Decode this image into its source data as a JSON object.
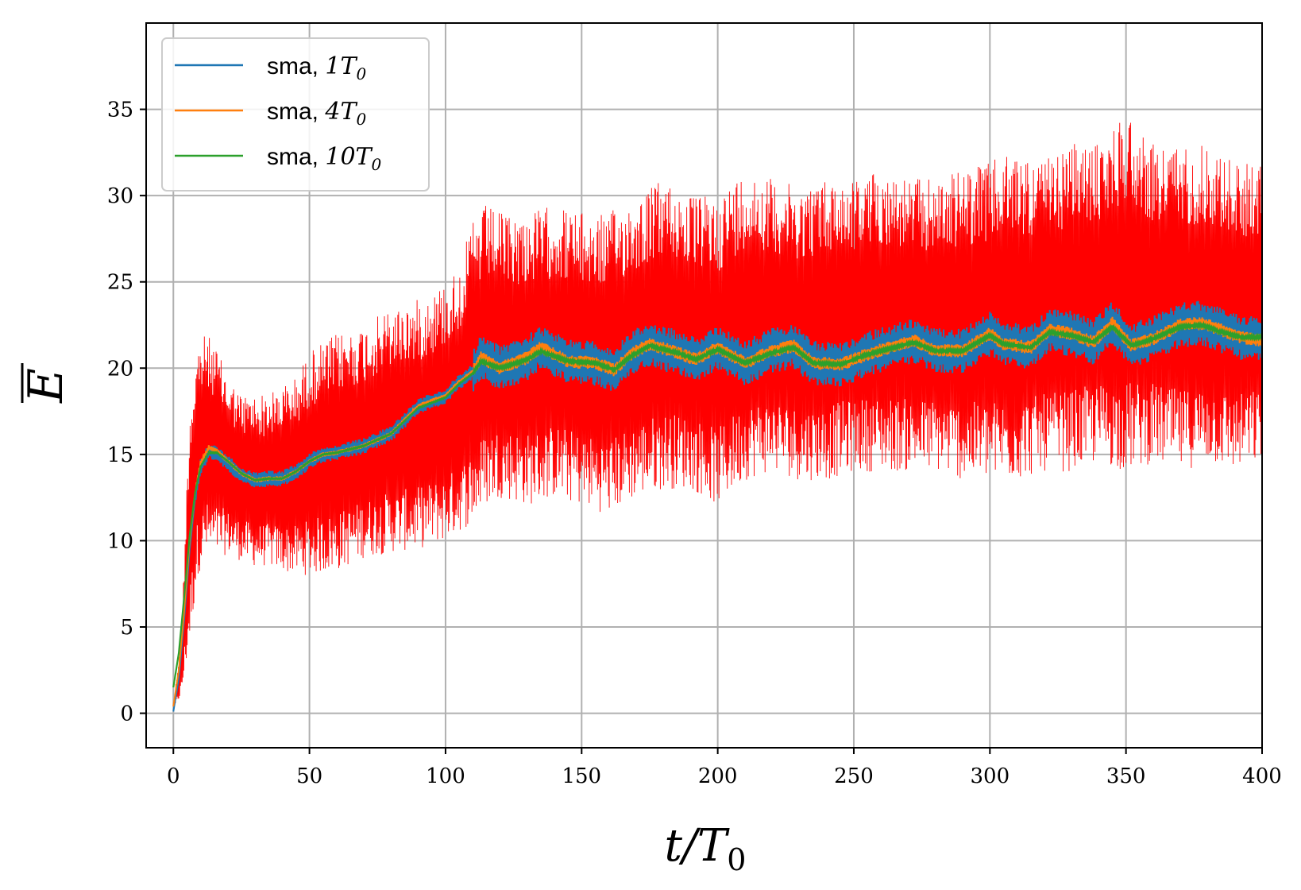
{
  "chart_data": {
    "type": "line",
    "xlabel": "t/T",
    "xlabel_sub": "0",
    "ylabel": "E",
    "ylabel_overline": true,
    "xlim": [
      -10,
      400
    ],
    "ylim": [
      -2,
      40
    ],
    "x_ticks": [
      0,
      50,
      100,
      150,
      200,
      250,
      300,
      350,
      400
    ],
    "y_ticks": [
      0,
      5,
      10,
      15,
      20,
      25,
      30,
      35
    ],
    "grid": true,
    "legend_position": "top-left",
    "colors": {
      "raw": "#ff0000",
      "sma1": "#1f77b4",
      "sma4": "#ff7f0e",
      "sma10": "#2ca02c"
    },
    "raw_signal": {
      "description_values": "unlabeled raw oscillating signal (red)",
      "envelope_x": [
        0,
        3,
        6,
        9,
        12,
        15,
        20,
        25,
        30,
        35,
        40,
        45,
        50,
        60,
        70,
        80,
        90,
        100,
        105,
        110,
        115,
        120,
        130,
        140,
        150,
        160,
        170,
        180,
        190,
        200,
        210,
        220,
        230,
        240,
        250,
        260,
        270,
        280,
        290,
        300,
        310,
        320,
        330,
        340,
        350,
        360,
        370,
        380,
        390,
        400
      ],
      "upper": [
        0.3,
        5,
        18,
        21.5,
        22,
        21.5,
        19.5,
        18.5,
        18.5,
        18.5,
        19,
        19.5,
        21,
        22,
        22.5,
        23.5,
        24,
        25,
        26,
        28.5,
        29.5,
        29,
        29,
        29.5,
        29,
        29,
        30,
        31,
        30,
        30,
        31.5,
        31,
        30.5,
        31,
        31,
        31.5,
        31,
        31,
        31.5,
        32,
        32.5,
        32,
        33,
        33,
        35,
        33,
        33,
        33,
        32,
        32
      ],
      "lower": [
        0.2,
        1,
        4,
        8,
        9,
        9,
        9.2,
        8.8,
        8.5,
        8.5,
        8.2,
        8,
        8,
        8.2,
        9,
        9.3,
        9.5,
        10,
        10.5,
        11,
        12,
        12.5,
        12,
        12.5,
        12,
        11.5,
        12.5,
        13,
        13,
        12,
        13.5,
        14,
        13.5,
        13.5,
        14,
        14,
        14,
        14,
        13.5,
        13.5,
        13.5,
        14,
        14,
        14.5,
        14,
        14.5,
        14,
        14.5,
        14,
        14.5
      ]
    },
    "series": [
      {
        "name": "sma, ",
        "name_math": "1T",
        "name_sub": "0",
        "color_key": "sma1",
        "x": [
          0,
          2,
          4,
          6,
          8,
          10,
          13,
          16,
          20,
          25,
          30,
          35,
          40,
          45,
          50,
          55,
          60,
          70,
          80,
          90,
          100,
          105,
          110,
          113,
          120,
          130,
          135,
          145,
          155,
          162,
          168,
          175,
          185,
          192,
          200,
          210,
          220,
          228,
          235,
          245,
          255,
          265,
          272,
          280,
          290,
          300,
          305,
          315,
          322,
          330,
          338,
          345,
          352,
          360,
          370,
          378,
          385,
          392,
          400
        ],
        "y": [
          0.1,
          2,
          5.5,
          9.5,
          12.5,
          14.3,
          15.2,
          15,
          14.5,
          13.8,
          13.5,
          13.6,
          13.6,
          14,
          14.6,
          15,
          15.1,
          15.5,
          16.2,
          17.8,
          18.4,
          19.2,
          19.8,
          20.6,
          20,
          20.6,
          21.2,
          20.4,
          20.3,
          19.9,
          20.8,
          21.4,
          20.9,
          20.5,
          21.2,
          20.3,
          21,
          21.3,
          20.3,
          20.2,
          20.8,
          21.3,
          21.6,
          21,
          21,
          22,
          21.4,
          21.2,
          22.2,
          22,
          21.5,
          22.6,
          21.3,
          21.7,
          22.5,
          22.6,
          22.2,
          21.8,
          21.6
        ],
        "noise": 1.2
      },
      {
        "name": "sma, ",
        "name_math": "4T",
        "name_sub": "0",
        "color_key": "sma4",
        "x": [
          0,
          2,
          4,
          6,
          8,
          10,
          13,
          16,
          20,
          25,
          30,
          35,
          40,
          45,
          50,
          55,
          60,
          70,
          80,
          90,
          100,
          105,
          110,
          113,
          120,
          130,
          135,
          145,
          155,
          162,
          168,
          175,
          185,
          192,
          200,
          210,
          220,
          228,
          235,
          245,
          255,
          265,
          272,
          280,
          290,
          300,
          305,
          315,
          322,
          330,
          338,
          345,
          352,
          360,
          370,
          378,
          385,
          392,
          400
        ],
        "y": [
          0.4,
          2.5,
          6,
          10,
          12.8,
          14.5,
          15.4,
          15.2,
          14.6,
          13.9,
          13.5,
          13.6,
          13.6,
          14,
          14.6,
          15,
          15.1,
          15.5,
          16.2,
          17.8,
          18.4,
          19.2,
          19.8,
          20.6,
          20,
          20.6,
          21.2,
          20.4,
          20.3,
          19.9,
          20.8,
          21.4,
          20.9,
          20.5,
          21.2,
          20.3,
          21,
          21.3,
          20.3,
          20.2,
          20.8,
          21.3,
          21.6,
          21,
          21,
          22,
          21.4,
          21.2,
          22.2,
          22,
          21.5,
          22.6,
          21.3,
          21.7,
          22.5,
          22.6,
          22.2,
          21.8,
          21.6
        ],
        "noise": 0.35
      },
      {
        "name": "sma, ",
        "name_math": "10T",
        "name_sub": "0",
        "color_key": "sma10",
        "x": [
          0,
          2,
          4,
          6,
          8,
          10,
          13,
          16,
          20,
          25,
          30,
          35,
          40,
          45,
          50,
          55,
          60,
          70,
          80,
          90,
          100,
          105,
          110,
          113,
          120,
          130,
          135,
          145,
          155,
          162,
          168,
          175,
          185,
          192,
          200,
          210,
          220,
          228,
          235,
          245,
          255,
          265,
          272,
          280,
          290,
          300,
          305,
          315,
          322,
          330,
          338,
          345,
          352,
          360,
          370,
          378,
          385,
          392,
          400
        ],
        "y": [
          1.5,
          3.5,
          6.8,
          10.3,
          12.8,
          14.3,
          15.1,
          15.1,
          14.6,
          13.9,
          13.5,
          13.6,
          13.6,
          14,
          14.6,
          15,
          15.1,
          15.5,
          16.2,
          17.7,
          18.3,
          19.1,
          19.7,
          20.4,
          20,
          20.5,
          21,
          20.4,
          20.3,
          19.9,
          20.7,
          21.3,
          20.9,
          20.5,
          21.1,
          20.3,
          20.9,
          21.2,
          20.3,
          20.2,
          20.8,
          21.2,
          21.5,
          21,
          21,
          21.9,
          21.4,
          21.2,
          22.1,
          21.9,
          21.5,
          22.4,
          21.3,
          21.7,
          22.4,
          22.5,
          22.1,
          21.8,
          21.8
        ],
        "noise": 0.08
      }
    ]
  }
}
